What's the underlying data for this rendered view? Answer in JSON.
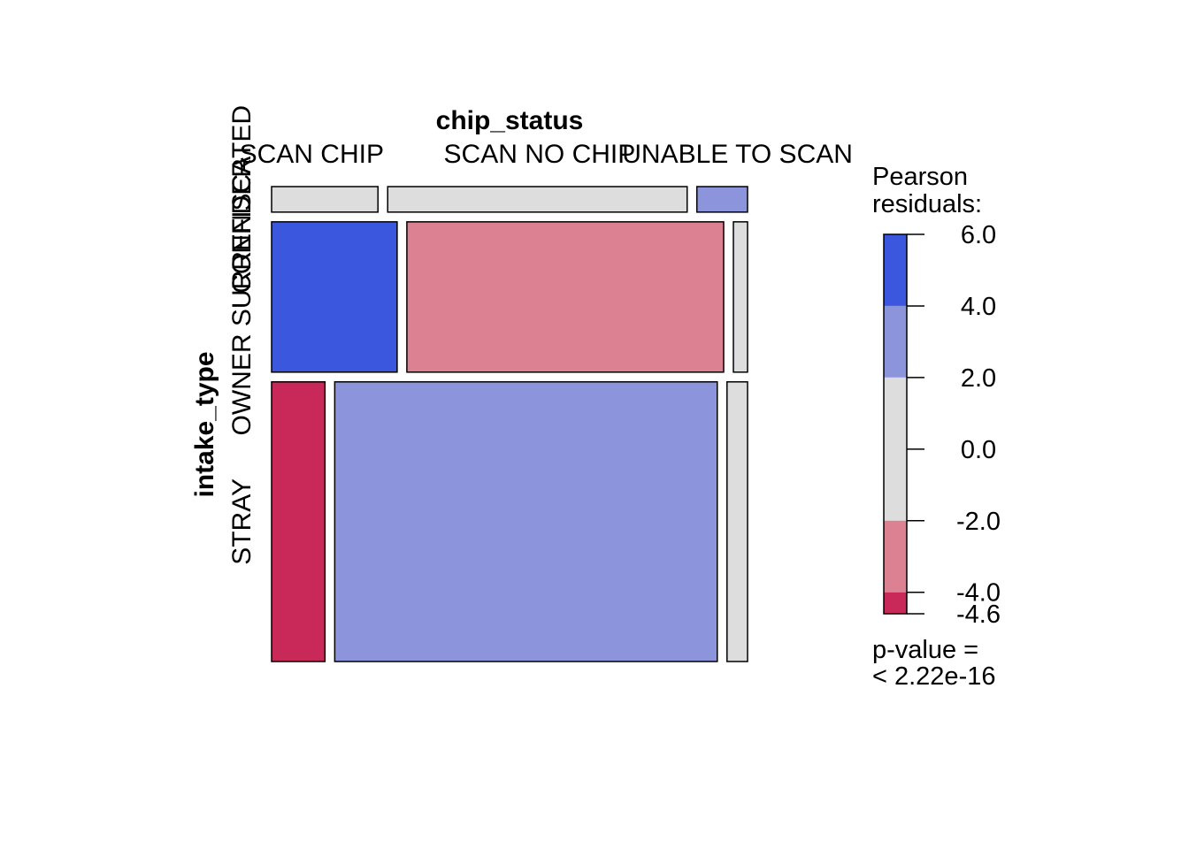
{
  "chart_data": {
    "type": "mosaic",
    "x_variable": "chip_status",
    "y_variable": "intake_type",
    "x_categories": [
      "SCAN CHIP",
      "SCAN NO CHIP",
      "UNABLE TO SCAN"
    ],
    "y_categories": [
      "CONFISCATED",
      "OWNER SURRENDER",
      "STRAY"
    ],
    "row_proportions": [
      0.056,
      0.33,
      0.614
    ],
    "cells": [
      {
        "row": "CONFISCATED",
        "col": "SCAN CHIP",
        "share": 0.233,
        "residual_band": "-2.0 to 2.0",
        "color": "#DDDDDD"
      },
      {
        "row": "CONFISCATED",
        "col": "SCAN NO CHIP",
        "share": 0.656,
        "residual_band": "-2.0 to 2.0",
        "color": "#DDDDDD"
      },
      {
        "row": "CONFISCATED",
        "col": "UNABLE TO SCAN",
        "share": 0.111,
        "residual_band": "2.0 to 4.0",
        "color": "#8C95DC"
      },
      {
        "row": "OWNER SURRENDER",
        "col": "SCAN CHIP",
        "share": 0.275,
        "residual_band": "4.0 to 6.0",
        "color": "#3B57DD"
      },
      {
        "row": "OWNER SURRENDER",
        "col": "SCAN NO CHIP",
        "share": 0.694,
        "residual_band": "-4.0 to -2.0",
        "color": "#DC8192"
      },
      {
        "row": "OWNER SURRENDER",
        "col": "UNABLE TO SCAN",
        "share": 0.031,
        "residual_band": "-2.0 to 2.0",
        "color": "#DDDDDD"
      },
      {
        "row": "STRAY",
        "col": "SCAN CHIP",
        "share": 0.117,
        "residual_band": "-4.6 to -4.0",
        "color": "#C82958"
      },
      {
        "row": "STRAY",
        "col": "SCAN NO CHIP",
        "share": 0.838,
        "residual_band": "2.0 to 4.0",
        "color": "#8C95DC"
      },
      {
        "row": "STRAY",
        "col": "UNABLE TO SCAN",
        "share": 0.045,
        "residual_band": "-2.0 to 2.0",
        "color": "#DDDDDD"
      }
    ],
    "legend": {
      "title_line1": "Pearson",
      "title_line2": "residuals:",
      "bands": [
        {
          "from": 4.0,
          "to": 6.0,
          "color": "#3B57DD"
        },
        {
          "from": 2.0,
          "to": 4.0,
          "color": "#8C95DC"
        },
        {
          "from": -2.0,
          "to": 2.0,
          "color": "#DDDDDD"
        },
        {
          "from": -4.0,
          "to": -2.0,
          "color": "#DC8192"
        },
        {
          "from": -4.6,
          "to": -4.0,
          "color": "#C82958"
        }
      ],
      "ticks": [
        "6.0",
        "4.0",
        "2.0",
        "0.0",
        "-2.0",
        "-4.0",
        "-4.6"
      ],
      "tick_values": [
        6.0,
        4.0,
        2.0,
        0.0,
        -2.0,
        -4.0,
        -4.6
      ],
      "range": [
        -4.6,
        6.0
      ],
      "pvalue_line1": "p-value =",
      "pvalue_line2": "< 2.22e-16"
    }
  }
}
